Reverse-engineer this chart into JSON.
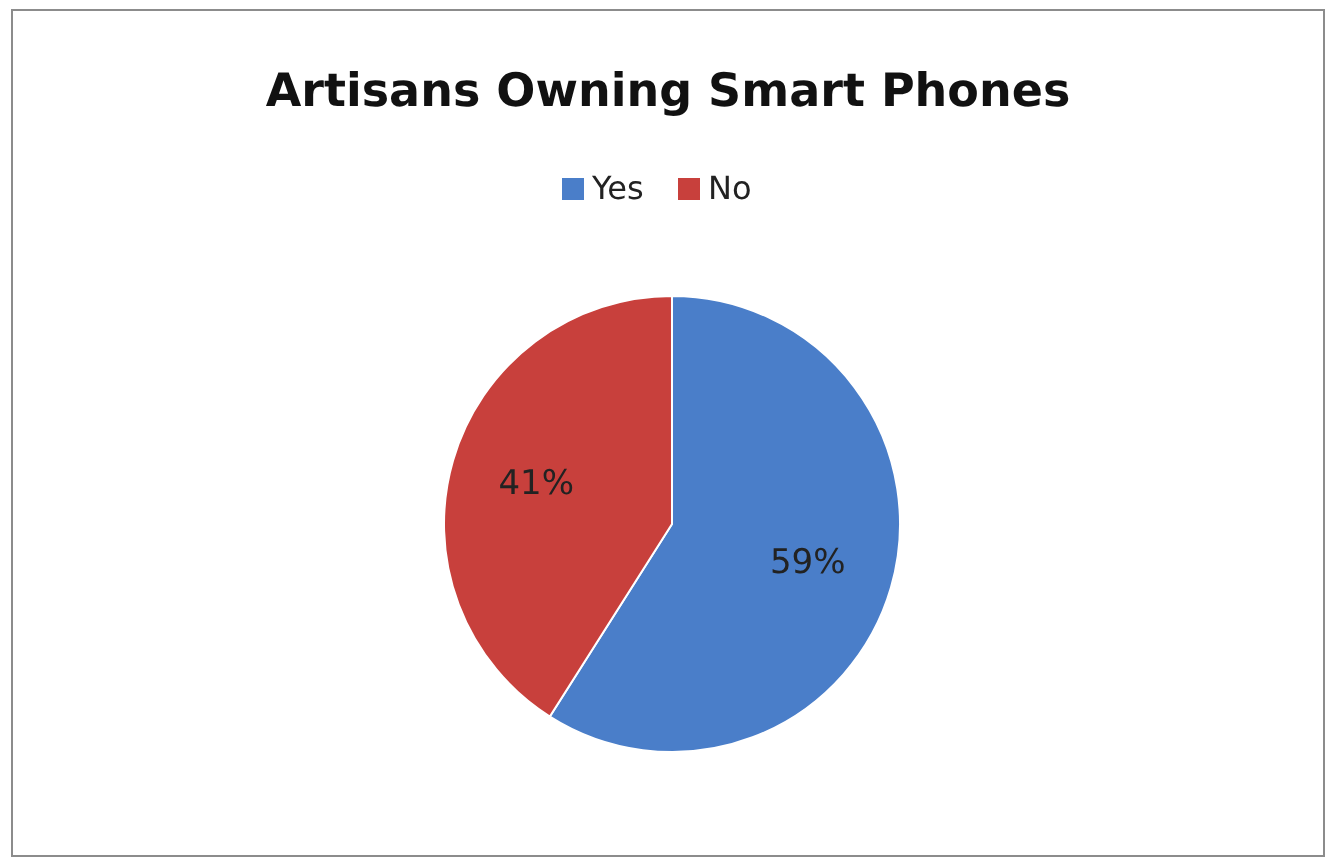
{
  "chart_data": {
    "type": "pie",
    "title": "Artisans Owning Smart Phones",
    "categories": [
      "Yes",
      "No"
    ],
    "values": [
      59,
      41
    ],
    "colors": [
      "#4a7ec9",
      "#c8403c"
    ],
    "value_labels": [
      "59%",
      "41%"
    ],
    "legend": "top"
  }
}
